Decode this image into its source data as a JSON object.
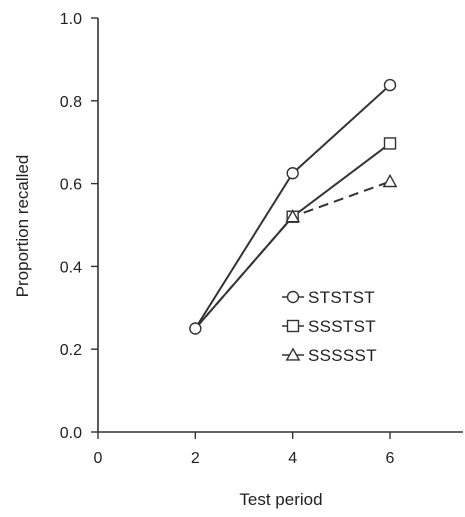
{
  "chart_data": {
    "type": "line",
    "xlabel": "Test period",
    "ylabel": "Proportion recalled",
    "xlim": [
      0,
      7.5
    ],
    "ylim": [
      0,
      1.0
    ],
    "xticks": [
      0,
      2,
      4,
      6
    ],
    "yticks": [
      0.0,
      0.2,
      0.4,
      0.6,
      0.8,
      1.0
    ],
    "xtick_labels": [
      "0",
      "2",
      "4",
      "6"
    ],
    "ytick_labels": [
      "0.0",
      "0.2",
      "0.4",
      "0.6",
      "0.8",
      "1.0"
    ],
    "grid": false,
    "legend_position": "right-middle",
    "series": [
      {
        "name": "STSTST",
        "marker": "circle",
        "dash": "solid",
        "x": [
          2,
          4,
          6
        ],
        "y": [
          0.25,
          0.625,
          0.838
        ]
      },
      {
        "name": "SSSTST",
        "marker": "square",
        "dash": "solid",
        "x": [
          2,
          4,
          6
        ],
        "y": [
          0.25,
          0.52,
          0.697
        ]
      },
      {
        "name": "SSSSST",
        "marker": "triangle",
        "dash": "dashed",
        "x": [
          2,
          4,
          6
        ],
        "y": [
          0.25,
          0.52,
          0.605
        ]
      }
    ],
    "line_color": "#333333",
    "marker_fill": "#ffffff"
  }
}
